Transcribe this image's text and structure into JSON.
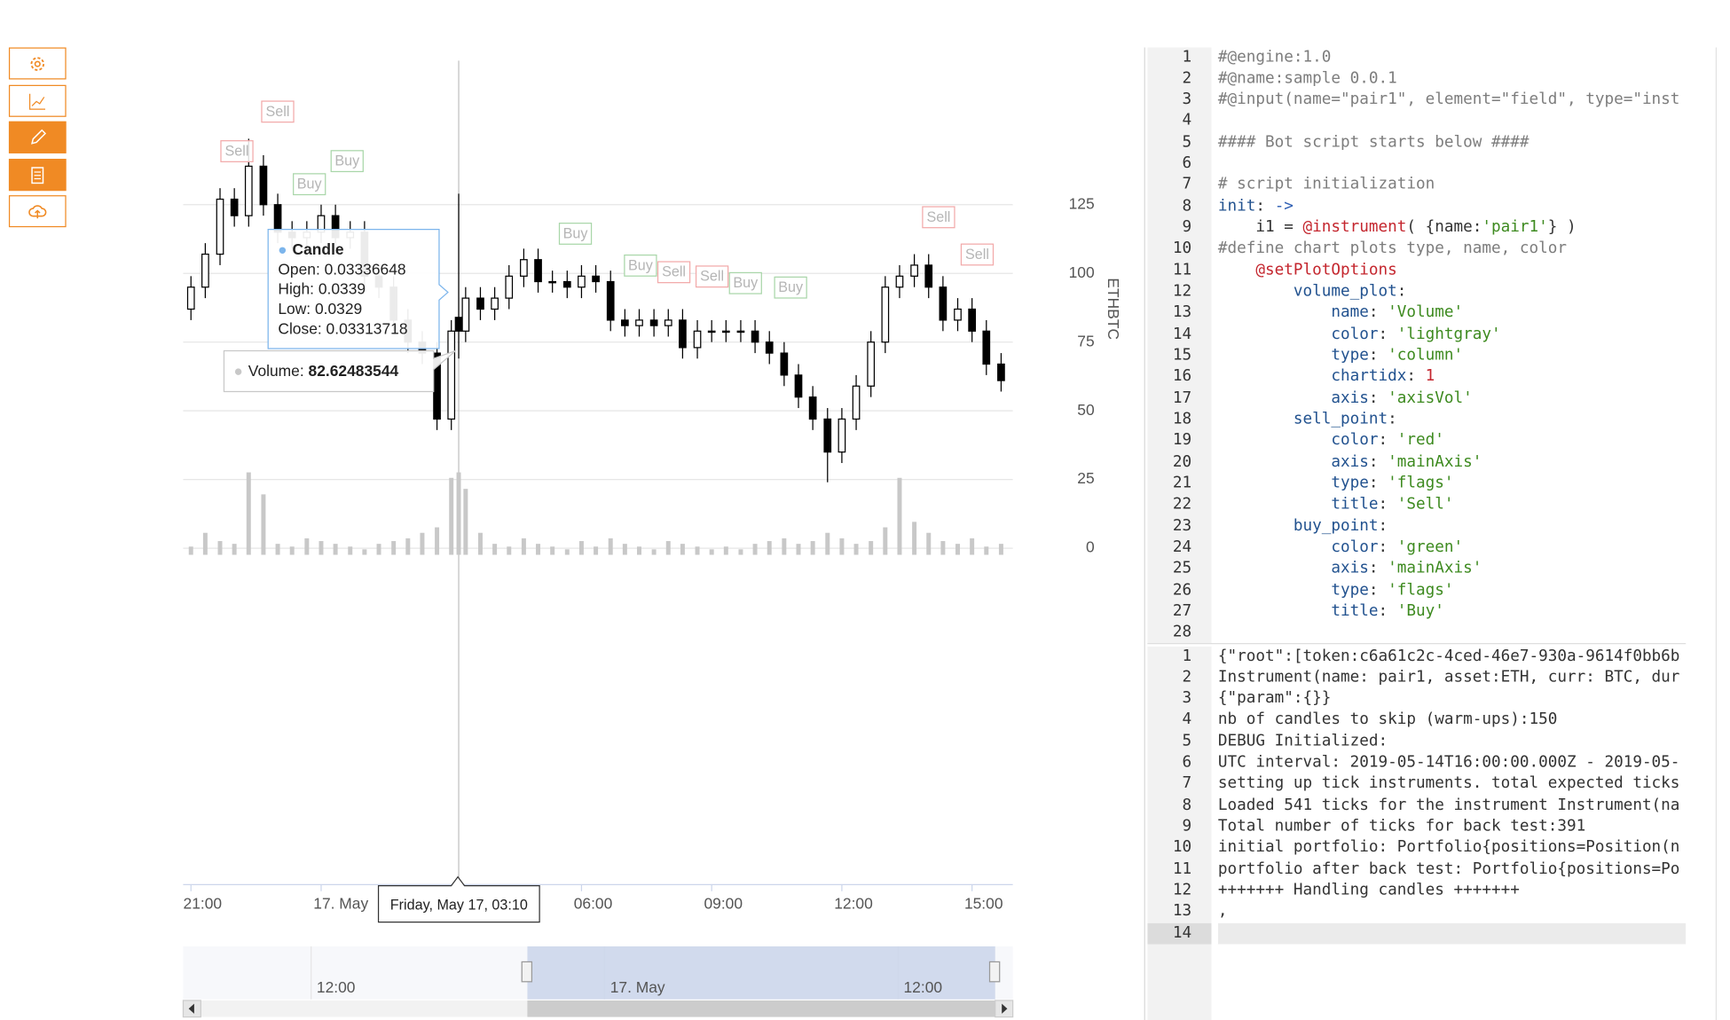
{
  "chart_data": {
    "type": "candlestick",
    "ylabel": "ETHBTC",
    "xlim": [
      -3.18,
      15.94
    ],
    "xticks": [
      {
        "value": -3,
        "label": "21:00"
      },
      {
        "value": 0,
        "label": "17. May"
      },
      {
        "value": 6,
        "label": "06:00"
      },
      {
        "value": 9,
        "label": "09:00"
      },
      {
        "value": 12,
        "label": "12:00"
      },
      {
        "value": 15,
        "label": "15:00"
      }
    ],
    "ylim": [
      -2.4,
      177.4
    ],
    "yticks": [
      0,
      25,
      50,
      75,
      100,
      125
    ],
    "grid": true,
    "x": [
      -3,
      -2.67,
      -2.33,
      -2,
      -1.67,
      -1.33,
      -1,
      -0.67,
      -0.33,
      0,
      0.33,
      0.67,
      1,
      1.33,
      1.67,
      2,
      2.33,
      2.67,
      3,
      3.17,
      3.33,
      3.67,
      4,
      4.33,
      4.67,
      5,
      5.33,
      5.67,
      6,
      6.33,
      6.67,
      7,
      7.33,
      7.67,
      8,
      8.33,
      8.67,
      9,
      9.33,
      9.67,
      10,
      10.33,
      10.67,
      11,
      11.33,
      11.67,
      12,
      12.33,
      12.67,
      13,
      13.33,
      13.67,
      14,
      14.33,
      14.67,
      15,
      15.33,
      15.67
    ],
    "open": [
      87,
      95,
      107,
      127,
      121,
      139,
      125,
      115,
      113,
      115,
      121,
      113,
      115,
      99,
      95,
      83,
      75,
      71,
      47,
      84,
      79,
      91,
      87,
      91,
      99,
      105,
      97,
      97,
      95,
      99,
      97,
      83,
      81,
      83,
      81,
      83,
      73,
      79,
      79,
      79,
      79,
      75,
      71,
      63,
      55,
      47,
      35,
      47,
      59,
      75,
      95,
      99,
      103,
      95,
      83,
      87,
      79,
      67
    ],
    "high": [
      99,
      111,
      131,
      131,
      149,
      143,
      129,
      119,
      119,
      125,
      125,
      119,
      119,
      103,
      99,
      87,
      79,
      75,
      83,
      129,
      95,
      95,
      95,
      103,
      109,
      109,
      101,
      101,
      103,
      103,
      101,
      87,
      87,
      87,
      87,
      87,
      83,
      83,
      83,
      83,
      83,
      79,
      75,
      67,
      59,
      51,
      51,
      63,
      79,
      99,
      103,
      107,
      107,
      99,
      91,
      91,
      83,
      71
    ],
    "low": [
      83,
      91,
      103,
      117,
      117,
      121,
      111,
      109,
      109,
      111,
      109,
      109,
      95,
      91,
      79,
      71,
      67,
      43,
      43,
      69,
      75,
      83,
      83,
      87,
      95,
      93,
      93,
      91,
      91,
      93,
      79,
      77,
      77,
      77,
      77,
      69,
      69,
      75,
      75,
      75,
      71,
      67,
      59,
      51,
      43,
      24,
      31,
      43,
      55,
      71,
      91,
      95,
      91,
      79,
      79,
      75,
      63,
      57
    ],
    "close": [
      95,
      107,
      127,
      121,
      139,
      125,
      115,
      113,
      115,
      121,
      113,
      115,
      99,
      95,
      83,
      75,
      71,
      47,
      79,
      79,
      91,
      87,
      91,
      99,
      105,
      97,
      97,
      95,
      99,
      97,
      83,
      81,
      83,
      81,
      83,
      73,
      79,
      79,
      79,
      79,
      75,
      71,
      63,
      55,
      47,
      35,
      47,
      59,
      75,
      95,
      99,
      103,
      95,
      83,
      87,
      79,
      67,
      61
    ],
    "volume": [
      3,
      8,
      5,
      4,
      30,
      22,
      4,
      3,
      6,
      5,
      4,
      3,
      2,
      4,
      5,
      6,
      8,
      10,
      28,
      30,
      24,
      8,
      4,
      3,
      6,
      4,
      3,
      2,
      5,
      3,
      6,
      4,
      3,
      2,
      5,
      4,
      3,
      2,
      3,
      2,
      4,
      5,
      6,
      4,
      5,
      8,
      6,
      4,
      5,
      10,
      28,
      12,
      8,
      5,
      4,
      6,
      3,
      4
    ],
    "volume_color": "#c8c8c8",
    "up_color": "#ffffff",
    "down_color": "#000000",
    "flags": [
      {
        "title": "Sell",
        "x": -2.31
      },
      {
        "title": "Sell",
        "x": -1.37
      },
      {
        "title": "Buy",
        "x": -0.64
      },
      {
        "title": "Buy",
        "x": 0.23
      },
      {
        "title": "Buy",
        "x": 5.49
      },
      {
        "title": "Buy",
        "x": 6.99
      },
      {
        "title": "Sell",
        "x": 7.76
      },
      {
        "title": "Sell",
        "x": 8.64
      },
      {
        "title": "Buy",
        "x": 9.41
      },
      {
        "title": "Buy",
        "x": 10.45
      },
      {
        "title": "Sell",
        "x": 13.86
      },
      {
        "title": "Sell",
        "x": 14.75
      }
    ],
    "flag_colors": {
      "Sell": "#f2a9a9",
      "Buy": "#a9d6a9"
    },
    "tooltip": {
      "title": "Candle",
      "lines": [
        "Open: 0.03336648",
        "High: 0.0339",
        "Low: 0.0329",
        "Close: 0.03313718"
      ],
      "volume_label": "Volume:",
      "volume": 82.62483544,
      "x_label": "Friday, May 17, 03:10"
    },
    "navigator": {
      "labels": [
        "12:00",
        "17. May",
        "12:00"
      ]
    }
  },
  "editor": {
    "numbers": [
      1,
      2,
      3,
      4,
      5,
      6,
      7,
      8,
      9,
      10,
      11,
      12,
      13,
      14,
      15,
      16,
      17,
      18,
      19,
      20,
      21,
      22,
      23,
      24,
      25,
      26,
      27,
      28
    ],
    "lines": [
      "#@engine:1.0",
      "#@name:sample 0.0.1",
      "#@input(name=\"pair1\", element=\"field\", type=\"inst",
      null,
      "#### Bot script starts below ####",
      null,
      "# script initialization",
      "init: ->",
      "    i1 = @instrument( {name:'pair1'} )",
      "#define chart plots type, name, color",
      "    @setPlotOptions",
      "        volume_plot:",
      "            name: 'Volume'",
      "            color: 'lightgray'",
      "            type: 'column'",
      "            chartidx: 1",
      "            axis: 'axisVol'",
      "        sell_point:",
      "            color: 'red'",
      "            axis: 'mainAxis'",
      "            type: 'flags'",
      "            title: 'Sell'",
      "        buy_point:",
      "            color: 'green'",
      "            axis: 'mainAxis'",
      "            type: 'flags'",
      "            title: 'Buy'",
      null
    ]
  },
  "console": {
    "numbers": [
      1,
      2,
      3,
      4,
      5,
      6,
      7,
      8,
      9,
      10,
      11,
      12,
      13,
      14
    ],
    "lines": [
      "{\"root\":[token:c6a61c2c-4ced-46e7-930a-9614f0bb6b",
      "Instrument(name: pair1, asset:ETH, curr: BTC, dur",
      "{\"param\":{}}",
      "nb of candles to skip (warm-ups):150",
      "DEBUG Initialized:",
      "UTC interval: 2019-05-14T16:00:00.000Z - 2019-05-",
      "setting up tick instruments. total expected ticks",
      "Loaded 541 ticks for the instrument Instrument(na",
      "Total number of ticks for back test:391",
      "initial portfolio: Portfolio{positions=Position(n",
      "portfolio after back test: Portfolio{positions=Po",
      "+++++++ Handling candles +++++++",
      ",",
      null
    ]
  }
}
